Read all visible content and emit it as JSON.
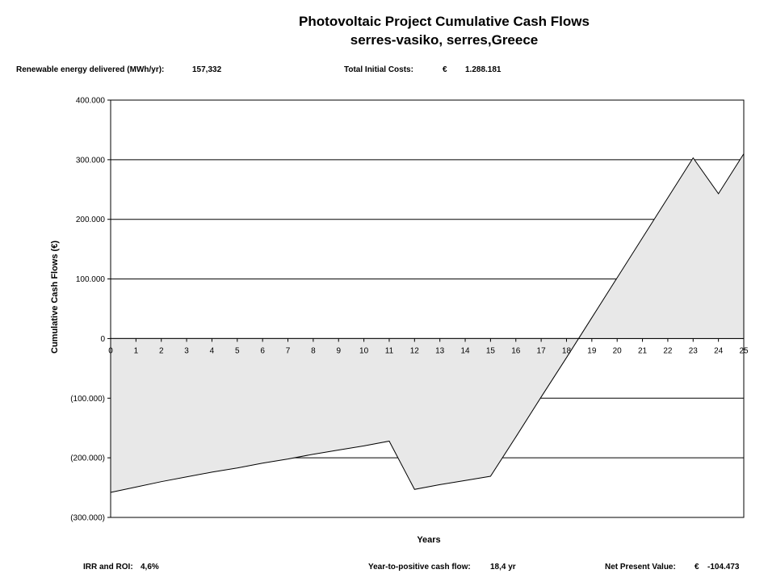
{
  "header": {
    "title": "Photovoltaic Project Cumulative Cash Flows",
    "subtitle": "serres-vasiko, serres,Greece"
  },
  "info": {
    "energy_label": "Renewable energy delivered (MWh/yr):",
    "energy_value": "157,332",
    "costs_label": "Total Initial Costs:",
    "costs_currency": "€",
    "costs_value": "1.288.181",
    "irr_label": "IRR and ROI:",
    "irr_value": "4,6%",
    "payback_label": "Year-to-positive cash flow:",
    "payback_value": "18,4 yr",
    "npv_label": "Net Present Value:",
    "npv_currency": "€",
    "npv_value": "-104.473"
  },
  "chart_data": {
    "type": "area",
    "title": "Photovoltaic Project Cumulative Cash Flows",
    "xlabel": "Years",
    "ylabel": "Cumulative Cash Flows (€)",
    "x": [
      0,
      1,
      2,
      3,
      4,
      5,
      6,
      7,
      8,
      9,
      10,
      11,
      12,
      13,
      14,
      15,
      16,
      17,
      18,
      19,
      20,
      21,
      22,
      23,
      24,
      25
    ],
    "series": [
      {
        "values": [
          -258000,
          -249000,
          -240000,
          -232000,
          -224000,
          -217000,
          -209000,
          -202000,
          -194000,
          -187000,
          -180000,
          -172000,
          -253000,
          -245000,
          -238000,
          -231000,
          -165000,
          -98000,
          -32000,
          35000,
          102000,
          169000,
          236000,
          303000,
          243000,
          310000
        ]
      }
    ],
    "ylim": [
      -300000,
      400000
    ],
    "xlim": [
      0,
      25
    ],
    "yticks": [
      400000,
      300000,
      200000,
      100000,
      0,
      -100000,
      -200000,
      -300000
    ],
    "ytick_labels": [
      "400.000",
      "300.000",
      "200.000",
      "100.000",
      "0",
      "(100.000)",
      "(200.000)",
      "(300.000)"
    ],
    "grid": true,
    "fill_color": "#e8e8e8",
    "line_color": "#000000"
  }
}
